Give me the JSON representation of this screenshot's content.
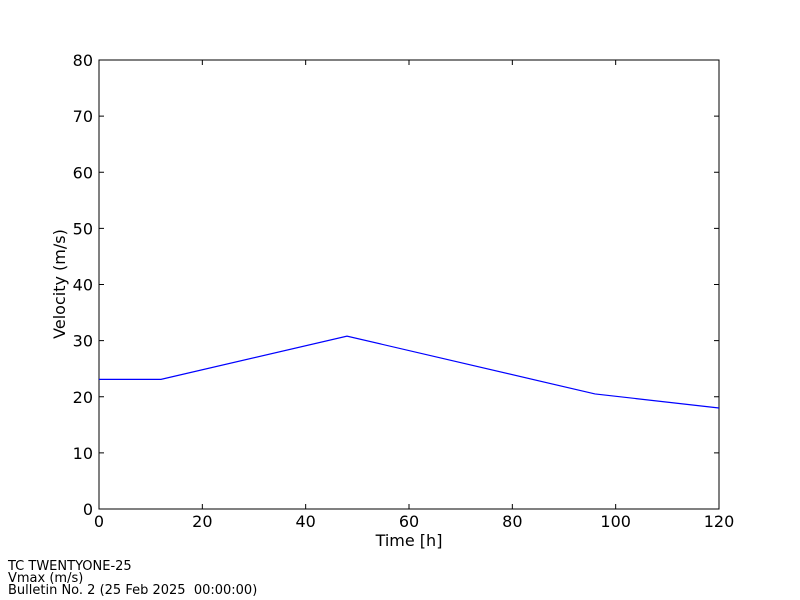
{
  "chart_data": {
    "type": "line",
    "x_label": "Time [h]",
    "y_label": "Velocity (m/s)",
    "x": [
      0,
      12,
      48,
      96,
      120
    ],
    "series": [
      {
        "color": "#0000ff",
        "values": [
          23.1,
          23.1,
          30.8,
          20.5,
          18.0
        ]
      }
    ],
    "xlim": [
      0,
      120
    ],
    "xticks": [
      0,
      20,
      40,
      60,
      80,
      100,
      120
    ],
    "ylim": [
      0,
      80
    ],
    "yticks": [
      0,
      10,
      20,
      30,
      40,
      50,
      60,
      70,
      80
    ],
    "grid": false
  },
  "footer": [
    "TC TWENTYONE-25",
    "Vmax (m/s)",
    "Bulletin No. 2 (25 Feb 2025  00:00:00)"
  ]
}
